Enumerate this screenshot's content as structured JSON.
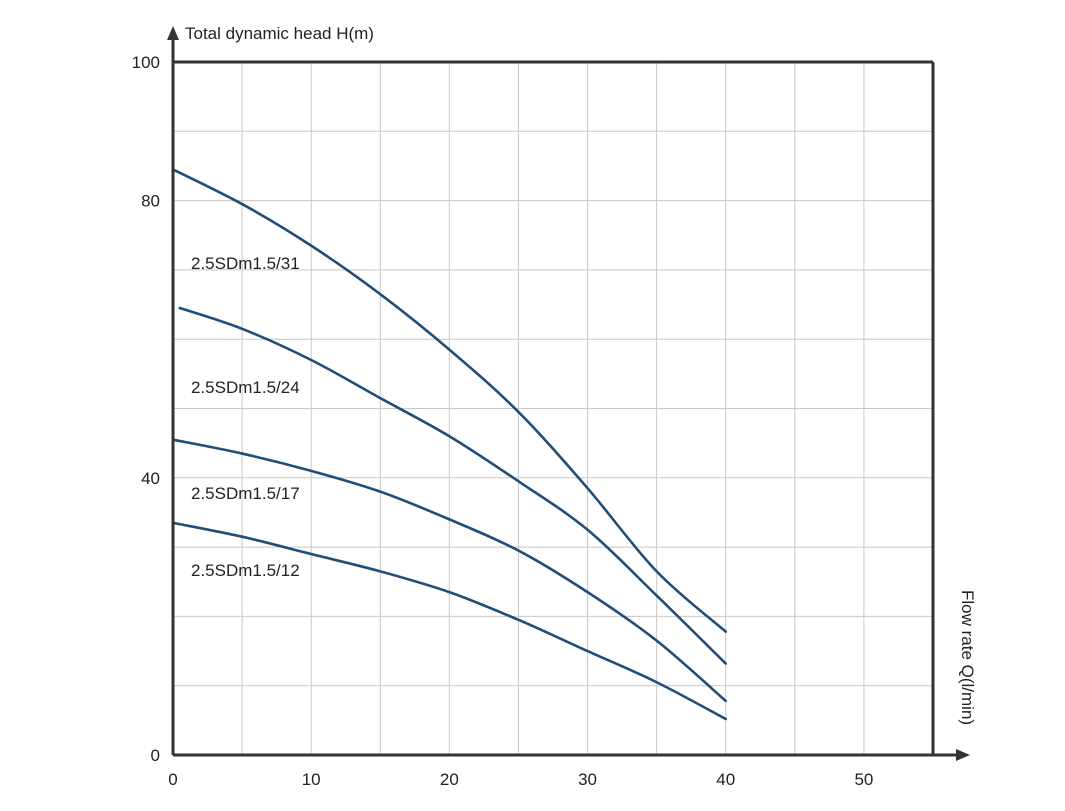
{
  "chart_data": {
    "type": "line",
    "ylabel": "Total dynamic head H(m)",
    "xlabel": "Flow rate Q(l/min)",
    "xlim": [
      0,
      55
    ],
    "ylim": [
      0,
      100
    ],
    "xticks": [
      0,
      10,
      20,
      30,
      40,
      50
    ],
    "yticks": [
      0,
      40,
      80,
      100
    ],
    "x_gridlines": [
      0,
      5,
      10,
      15,
      20,
      25,
      30,
      35,
      40,
      45,
      50,
      55
    ],
    "y_gridlines": [
      0,
      10,
      20,
      30,
      40,
      50,
      60,
      70,
      80,
      90,
      100
    ],
    "grid": true,
    "line_color": "#1f4e79",
    "series": [
      {
        "name": "2.5SDm1.5/31",
        "x": [
          0,
          5,
          10,
          15,
          20,
          25,
          30,
          35,
          40
        ],
        "y": [
          84.5,
          79.5,
          73.5,
          66.5,
          58.5,
          49.5,
          38.5,
          26.5,
          17.8
        ]
      },
      {
        "name": "2.5SDm1.5/24",
        "x": [
          0.5,
          5,
          10,
          15,
          20,
          25,
          30,
          35,
          40
        ],
        "y": [
          64.5,
          61.5,
          57,
          51.5,
          46,
          39.5,
          32.5,
          23,
          13.2
        ]
      },
      {
        "name": "2.5SDm1.5/17",
        "x": [
          0,
          5,
          10,
          15,
          20,
          25,
          30,
          35,
          40
        ],
        "y": [
          45.5,
          43.5,
          41,
          38,
          34,
          29.5,
          23.5,
          16.5,
          7.8
        ]
      },
      {
        "name": "2.5SDm1.5/12",
        "x": [
          0,
          5,
          10,
          15,
          20,
          25,
          30,
          35,
          40
        ],
        "y": [
          33.5,
          31.5,
          29,
          26.5,
          23.5,
          19.5,
          15,
          10.5,
          5.2
        ]
      }
    ]
  }
}
